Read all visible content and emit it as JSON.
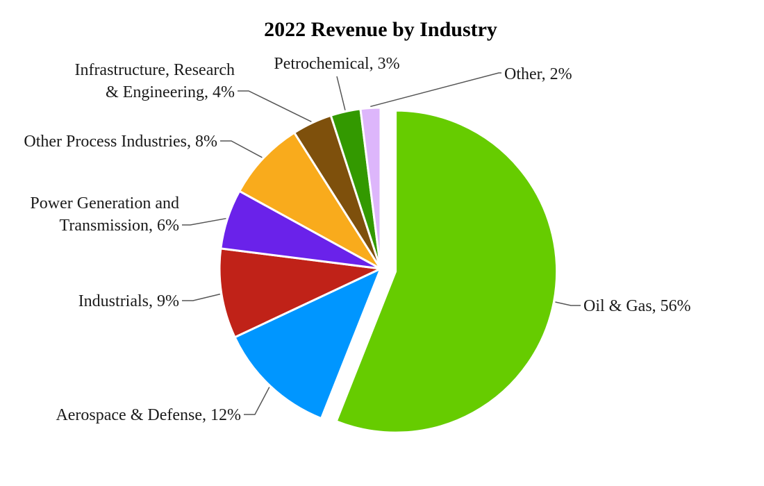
{
  "chart_data": {
    "type": "pie",
    "title": "2022 Revenue by Industry",
    "start_angle_deg": 0,
    "direction": "clockwise",
    "slices": [
      {
        "label": "Oil & Gas, 56%",
        "value": 56,
        "color": "#66cc00",
        "exploded": true
      },
      {
        "label": "Aerospace & Defense, 12%",
        "value": 12,
        "color": "#0096ff",
        "exploded": false
      },
      {
        "label": "Industrials, 9%",
        "value": 9,
        "color": "#c02218",
        "exploded": false
      },
      {
        "label": "Power Generation and\nTransmission, 6%",
        "value": 6,
        "color": "#6a22ea",
        "exploded": false
      },
      {
        "label": "Other Process Industries, 8%",
        "value": 8,
        "color": "#f9ab1c",
        "exploded": false
      },
      {
        "label": "Infrastructure, Research\n& Engineering, 4%",
        "value": 4,
        "color": "#7e500c",
        "exploded": false
      },
      {
        "label": "Petrochemical, 3%",
        "value": 3,
        "color": "#339900",
        "exploded": false
      },
      {
        "label": "Other, 2%",
        "value": 2,
        "color": "#ddb6fb",
        "exploded": false
      }
    ]
  }
}
